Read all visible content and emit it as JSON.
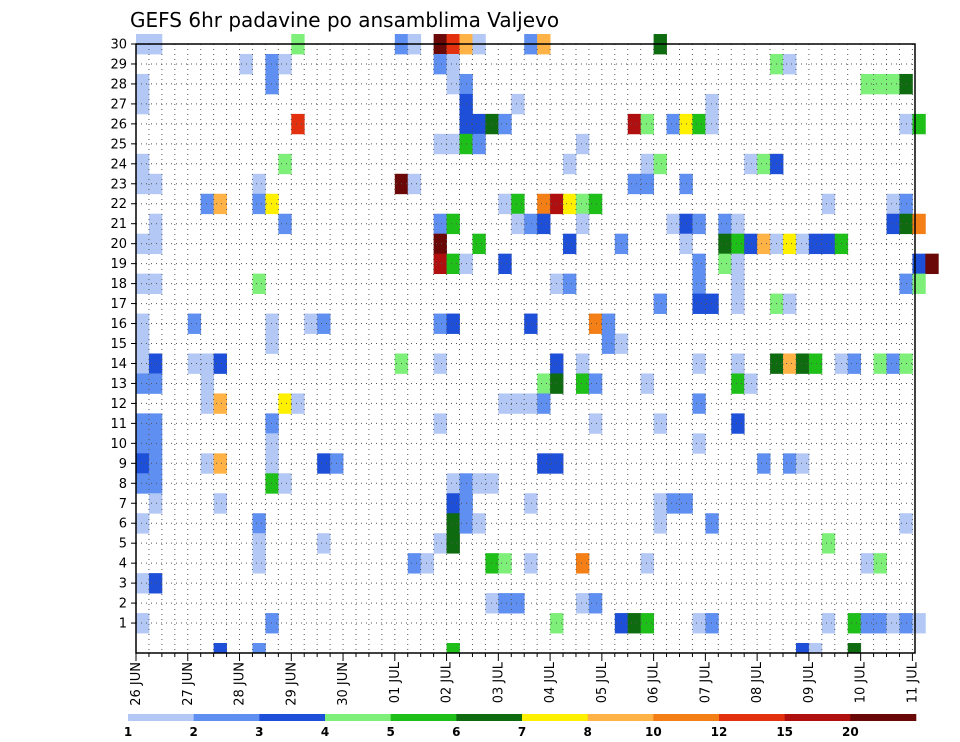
{
  "chart_data": {
    "type": "heatmap",
    "title": "GEFS 6hr padavine po ansamblima Valjevo",
    "xlabel": "",
    "ylabel": "",
    "x_ticks": [
      "26 JUN",
      "27 JUN",
      "28 JUN",
      "29 JUN",
      "30 JUN",
      "01 JUL",
      "02 JUL",
      "03 JUL",
      "04 JUL",
      "05 JUL",
      "06 JUL",
      "07 JUL",
      "08 JUL",
      "09 JUL",
      "10 JUL",
      "11 JUL"
    ],
    "time_steps_per_day": 4,
    "y_ticks": [
      "1",
      "2",
      "3",
      "4",
      "5",
      "6",
      "7",
      "8",
      "9",
      "10",
      "11",
      "12",
      "13",
      "14",
      "15",
      "16",
      "17",
      "18",
      "19",
      "20",
      "21",
      "22",
      "23",
      "24",
      "25",
      "26",
      "27",
      "28",
      "29",
      "30"
    ],
    "members": 30,
    "grid": true,
    "colorbar": {
      "placement": "bottom",
      "labels": [
        "1",
        "2",
        "3",
        "4",
        "5",
        "6",
        "7",
        "8",
        "10",
        "12",
        "15",
        "20"
      ],
      "colors": [
        "#b3c8f5",
        "#5f8ff0",
        "#1d4fd8",
        "#7ef07a",
        "#1fbf1a",
        "#0f6b10",
        "#fff000",
        "#ffb347",
        "#f57f17",
        "#e3300f",
        "#b00f0f",
        "#6a0808"
      ]
    },
    "cells": [
      [
        30,
        0,
        1
      ],
      [
        30,
        1,
        1
      ],
      [
        30,
        12,
        4
      ],
      [
        30,
        20,
        2
      ],
      [
        30,
        21,
        1
      ],
      [
        30,
        23,
        12
      ],
      [
        30,
        24,
        10
      ],
      [
        30,
        25,
        8
      ],
      [
        30,
        26,
        1
      ],
      [
        30,
        30,
        2
      ],
      [
        30,
        31,
        8
      ],
      [
        30,
        40,
        6
      ],
      [
        29,
        8,
        1
      ],
      [
        29,
        10,
        2
      ],
      [
        29,
        11,
        1
      ],
      [
        29,
        23,
        2
      ],
      [
        29,
        24,
        1
      ],
      [
        29,
        49,
        4
      ],
      [
        29,
        50,
        1
      ],
      [
        28,
        0,
        1
      ],
      [
        28,
        10,
        2
      ],
      [
        28,
        24,
        1
      ],
      [
        28,
        25,
        2
      ],
      [
        28,
        56,
        4
      ],
      [
        28,
        57,
        4
      ],
      [
        28,
        58,
        4
      ],
      [
        28,
        59,
        6
      ],
      [
        27,
        0,
        1
      ],
      [
        27,
        25,
        3
      ],
      [
        27,
        29,
        1
      ],
      [
        27,
        44,
        1
      ],
      [
        26,
        12,
        10
      ],
      [
        26,
        25,
        3
      ],
      [
        26,
        26,
        3
      ],
      [
        26,
        27,
        6
      ],
      [
        26,
        28,
        2
      ],
      [
        26,
        38,
        11
      ],
      [
        26,
        39,
        4
      ],
      [
        26,
        41,
        2
      ],
      [
        26,
        42,
        7
      ],
      [
        26,
        43,
        5
      ],
      [
        26,
        44,
        1
      ],
      [
        26,
        59,
        1
      ],
      [
        26,
        60,
        5
      ],
      [
        25,
        23,
        1
      ],
      [
        25,
        24,
        1
      ],
      [
        25,
        25,
        5
      ],
      [
        25,
        26,
        2
      ],
      [
        25,
        34,
        1
      ],
      [
        24,
        0,
        1
      ],
      [
        24,
        11,
        4
      ],
      [
        24,
        33,
        1
      ],
      [
        24,
        39,
        1
      ],
      [
        24,
        40,
        4
      ],
      [
        24,
        47,
        1
      ],
      [
        24,
        48,
        4
      ],
      [
        24,
        49,
        3
      ],
      [
        23,
        0,
        1
      ],
      [
        23,
        1,
        1
      ],
      [
        23,
        9,
        1
      ],
      [
        23,
        20,
        12
      ],
      [
        23,
        21,
        1
      ],
      [
        23,
        38,
        2
      ],
      [
        23,
        39,
        2
      ],
      [
        23,
        42,
        2
      ],
      [
        22,
        5,
        2
      ],
      [
        22,
        6,
        8
      ],
      [
        22,
        9,
        2
      ],
      [
        22,
        10,
        7
      ],
      [
        22,
        28,
        1
      ],
      [
        22,
        29,
        5
      ],
      [
        22,
        31,
        9
      ],
      [
        22,
        32,
        11
      ],
      [
        22,
        33,
        7
      ],
      [
        22,
        34,
        4
      ],
      [
        22,
        35,
        5
      ],
      [
        22,
        53,
        1
      ],
      [
        22,
        58,
        1
      ],
      [
        22,
        59,
        2
      ],
      [
        21,
        1,
        1
      ],
      [
        21,
        11,
        2
      ],
      [
        21,
        23,
        2
      ],
      [
        21,
        24,
        5
      ],
      [
        21,
        29,
        1
      ],
      [
        21,
        30,
        2
      ],
      [
        21,
        31,
        3
      ],
      [
        21,
        34,
        1
      ],
      [
        21,
        41,
        1
      ],
      [
        21,
        42,
        3
      ],
      [
        21,
        43,
        2
      ],
      [
        21,
        45,
        2
      ],
      [
        21,
        46,
        1
      ],
      [
        21,
        58,
        3
      ],
      [
        21,
        59,
        6
      ],
      [
        21,
        60,
        9
      ],
      [
        20,
        0,
        1
      ],
      [
        20,
        1,
        1
      ],
      [
        20,
        23,
        12
      ],
      [
        20,
        26,
        5
      ],
      [
        20,
        33,
        3
      ],
      [
        20,
        37,
        2
      ],
      [
        20,
        42,
        1
      ],
      [
        20,
        45,
        6
      ],
      [
        20,
        46,
        5
      ],
      [
        20,
        47,
        3
      ],
      [
        20,
        48,
        8
      ],
      [
        20,
        49,
        1
      ],
      [
        20,
        50,
        7
      ],
      [
        20,
        51,
        1
      ],
      [
        20,
        52,
        3
      ],
      [
        20,
        53,
        3
      ],
      [
        20,
        54,
        5
      ],
      [
        19,
        23,
        11
      ],
      [
        19,
        24,
        5
      ],
      [
        19,
        25,
        1
      ],
      [
        19,
        28,
        3
      ],
      [
        19,
        43,
        2
      ],
      [
        19,
        45,
        4
      ],
      [
        19,
        46,
        1
      ],
      [
        19,
        60,
        3
      ],
      [
        19,
        61,
        12
      ],
      [
        18,
        0,
        1
      ],
      [
        18,
        1,
        1
      ],
      [
        18,
        9,
        4
      ],
      [
        18,
        32,
        1
      ],
      [
        18,
        33,
        2
      ],
      [
        18,
        43,
        2
      ],
      [
        18,
        46,
        1
      ],
      [
        18,
        59,
        2
      ],
      [
        18,
        60,
        4
      ],
      [
        17,
        43,
        3
      ],
      [
        17,
        44,
        3
      ],
      [
        17,
        40,
        2
      ],
      [
        17,
        46,
        1
      ],
      [
        17,
        49,
        4
      ],
      [
        17,
        50,
        1
      ],
      [
        16,
        0,
        1
      ],
      [
        16,
        4,
        2
      ],
      [
        16,
        10,
        1
      ],
      [
        16,
        13,
        1
      ],
      [
        16,
        14,
        2
      ],
      [
        16,
        23,
        2
      ],
      [
        16,
        24,
        3
      ],
      [
        16,
        30,
        3
      ],
      [
        16,
        35,
        9
      ],
      [
        16,
        36,
        2
      ],
      [
        15,
        0,
        1
      ],
      [
        15,
        10,
        1
      ],
      [
        15,
        36,
        2
      ],
      [
        15,
        37,
        1
      ],
      [
        14,
        0,
        1
      ],
      [
        14,
        1,
        3
      ],
      [
        14,
        4,
        1
      ],
      [
        14,
        5,
        1
      ],
      [
        14,
        6,
        3
      ],
      [
        14,
        20,
        4
      ],
      [
        14,
        23,
        1
      ],
      [
        14,
        32,
        3
      ],
      [
        14,
        34,
        1
      ],
      [
        14,
        43,
        1
      ],
      [
        14,
        46,
        1
      ],
      [
        14,
        49,
        6
      ],
      [
        14,
        50,
        8
      ],
      [
        14,
        51,
        6
      ],
      [
        14,
        52,
        5
      ],
      [
        14,
        54,
        1
      ],
      [
        14,
        55,
        2
      ],
      [
        14,
        57,
        4
      ],
      [
        14,
        58,
        2
      ],
      [
        14,
        59,
        4
      ],
      [
        13,
        0,
        2
      ],
      [
        13,
        1,
        2
      ],
      [
        13,
        5,
        1
      ],
      [
        13,
        31,
        4
      ],
      [
        13,
        32,
        6
      ],
      [
        13,
        34,
        5
      ],
      [
        13,
        35,
        2
      ],
      [
        13,
        39,
        1
      ],
      [
        13,
        46,
        5
      ],
      [
        13,
        47,
        1
      ],
      [
        12,
        5,
        1
      ],
      [
        12,
        6,
        8
      ],
      [
        12,
        11,
        7
      ],
      [
        12,
        12,
        1
      ],
      [
        12,
        28,
        1
      ],
      [
        12,
        29,
        1
      ],
      [
        12,
        30,
        1
      ],
      [
        12,
        31,
        2
      ],
      [
        12,
        43,
        2
      ],
      [
        11,
        0,
        2
      ],
      [
        11,
        1,
        2
      ],
      [
        11,
        10,
        2
      ],
      [
        11,
        23,
        1
      ],
      [
        11,
        35,
        1
      ],
      [
        11,
        40,
        1
      ],
      [
        11,
        46,
        3
      ],
      [
        10,
        0,
        2
      ],
      [
        10,
        1,
        2
      ],
      [
        10,
        10,
        1
      ],
      [
        10,
        43,
        1
      ],
      [
        9,
        0,
        3
      ],
      [
        9,
        1,
        2
      ],
      [
        9,
        5,
        1
      ],
      [
        9,
        6,
        8
      ],
      [
        9,
        10,
        1
      ],
      [
        9,
        14,
        3
      ],
      [
        9,
        15,
        2
      ],
      [
        9,
        31,
        3
      ],
      [
        9,
        32,
        3
      ],
      [
        9,
        48,
        2
      ],
      [
        9,
        50,
        2
      ],
      [
        9,
        51,
        1
      ],
      [
        8,
        0,
        2
      ],
      [
        8,
        1,
        2
      ],
      [
        8,
        10,
        5
      ],
      [
        8,
        11,
        1
      ],
      [
        8,
        24,
        1
      ],
      [
        8,
        25,
        2
      ],
      [
        8,
        26,
        1
      ],
      [
        8,
        27,
        1
      ],
      [
        7,
        1,
        1
      ],
      [
        7,
        6,
        1
      ],
      [
        7,
        24,
        3
      ],
      [
        7,
        25,
        2
      ],
      [
        7,
        30,
        1
      ],
      [
        7,
        40,
        1
      ],
      [
        7,
        41,
        2
      ],
      [
        7,
        42,
        2
      ],
      [
        6,
        0,
        1
      ],
      [
        6,
        9,
        2
      ],
      [
        6,
        24,
        6
      ],
      [
        6,
        25,
        2
      ],
      [
        6,
        26,
        1
      ],
      [
        6,
        40,
        1
      ],
      [
        6,
        44,
        2
      ],
      [
        6,
        59,
        1
      ],
      [
        5,
        9,
        1
      ],
      [
        5,
        14,
        1
      ],
      [
        5,
        23,
        1
      ],
      [
        5,
        24,
        6
      ],
      [
        5,
        53,
        4
      ],
      [
        4,
        9,
        1
      ],
      [
        4,
        21,
        2
      ],
      [
        4,
        22,
        1
      ],
      [
        4,
        27,
        5
      ],
      [
        4,
        28,
        4
      ],
      [
        4,
        30,
        1
      ],
      [
        4,
        34,
        9
      ],
      [
        4,
        39,
        1
      ],
      [
        4,
        56,
        1
      ],
      [
        4,
        57,
        4
      ],
      [
        3,
        0,
        1
      ],
      [
        3,
        1,
        3
      ],
      [
        2,
        27,
        1
      ],
      [
        2,
        28,
        2
      ],
      [
        2,
        29,
        2
      ],
      [
        2,
        34,
        1
      ],
      [
        2,
        35,
        2
      ],
      [
        1,
        0,
        1
      ],
      [
        1,
        10,
        2
      ],
      [
        1,
        32,
        4
      ],
      [
        1,
        37,
        3
      ],
      [
        1,
        38,
        6
      ],
      [
        1,
        39,
        5
      ],
      [
        1,
        43,
        1
      ],
      [
        1,
        44,
        2
      ],
      [
        1,
        53,
        1
      ],
      [
        1,
        55,
        5
      ],
      [
        1,
        56,
        2
      ],
      [
        1,
        57,
        2
      ],
      [
        1,
        58,
        1
      ],
      [
        1,
        59,
        2
      ],
      [
        1,
        60,
        1
      ]
    ],
    "bottom_strip": [
      [
        6,
        3
      ],
      [
        9,
        2
      ],
      [
        24,
        5
      ],
      [
        51,
        3
      ],
      [
        52,
        1
      ],
      [
        55,
        6
      ]
    ]
  }
}
